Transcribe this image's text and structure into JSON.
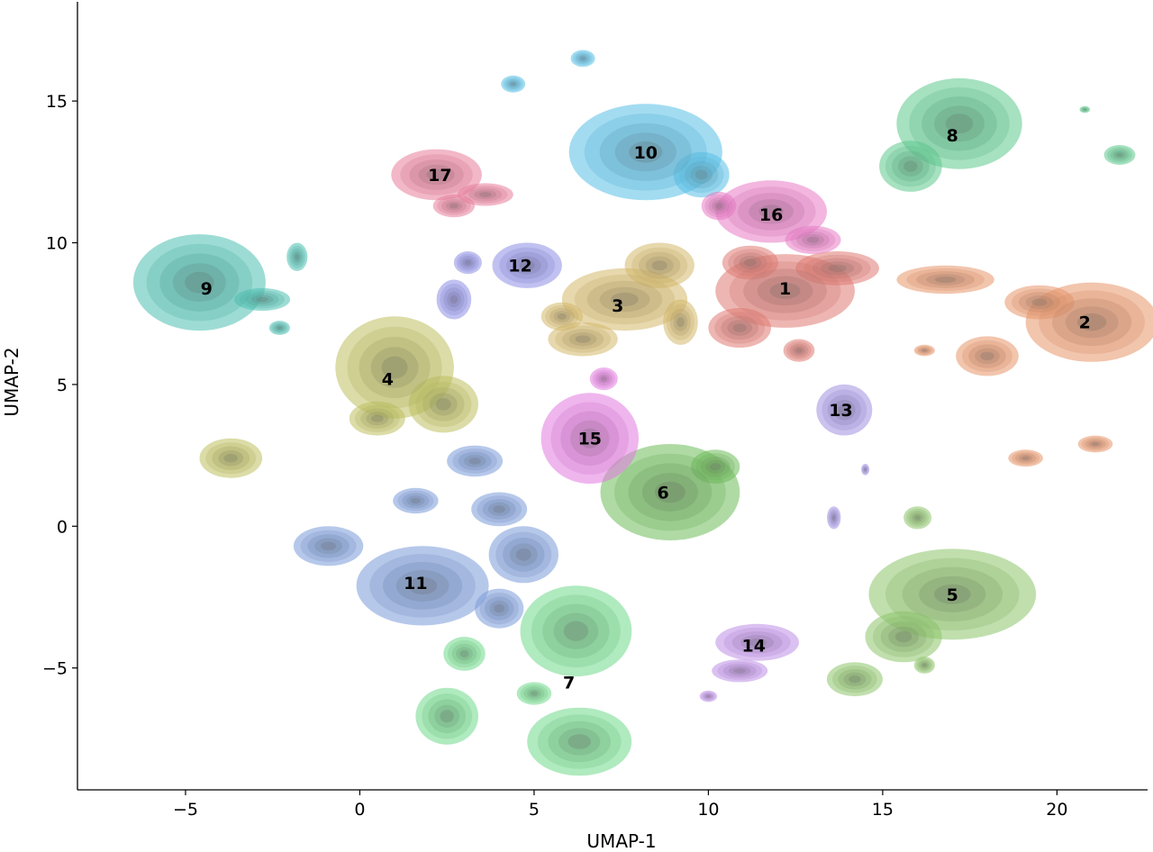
{
  "chart_data": {
    "type": "density-contour",
    "title": "",
    "xlabel": "UMAP-1",
    "ylabel": "UMAP-2",
    "xlim": [
      -8.1,
      22.6
    ],
    "ylim": [
      -9.3,
      18.5
    ],
    "x_ticks": [
      -5,
      0,
      5,
      10,
      15,
      20
    ],
    "y_ticks": [
      -5,
      0,
      5,
      10,
      15
    ],
    "x_tick_labels": [
      "−5",
      "0",
      "5",
      "10",
      "15",
      "20"
    ],
    "y_tick_labels": [
      "−5",
      "0",
      "5",
      "10",
      "15"
    ],
    "grid": false,
    "legend": "none",
    "clusters": [
      {
        "label": "1",
        "color": "#e07a72",
        "center": [
          12.2,
          8.4
        ],
        "blobs": [
          [
            12.2,
            8.3,
            2.0,
            1.3
          ],
          [
            10.9,
            7.0,
            0.9,
            0.7
          ],
          [
            13.7,
            9.1,
            1.2,
            0.6
          ],
          [
            12.6,
            6.2,
            0.45,
            0.4
          ],
          [
            11.2,
            9.3,
            0.8,
            0.6
          ]
        ]
      },
      {
        "label": "2",
        "color": "#e8956a",
        "center": [
          20.8,
          7.2
        ],
        "blobs": [
          [
            21.0,
            7.2,
            1.9,
            1.4
          ],
          [
            18.0,
            6.0,
            0.9,
            0.7
          ],
          [
            16.8,
            8.7,
            1.4,
            0.5
          ],
          [
            19.5,
            7.9,
            1.0,
            0.6
          ],
          [
            16.2,
            6.2,
            0.3,
            0.2
          ],
          [
            19.1,
            2.4,
            0.5,
            0.3
          ],
          [
            21.1,
            2.9,
            0.5,
            0.3
          ]
        ]
      },
      {
        "label": "3",
        "color": "#d4b86a",
        "center": [
          7.4,
          7.8
        ],
        "blobs": [
          [
            7.6,
            8.0,
            1.8,
            1.1
          ],
          [
            8.6,
            9.2,
            1.0,
            0.8
          ],
          [
            6.4,
            6.6,
            1.0,
            0.6
          ],
          [
            5.8,
            7.4,
            0.6,
            0.5
          ],
          [
            9.2,
            7.2,
            0.5,
            0.8
          ]
        ]
      },
      {
        "label": "4",
        "color": "#bdc05e",
        "center": [
          0.8,
          5.2
        ],
        "blobs": [
          [
            1.0,
            5.6,
            1.7,
            1.8
          ],
          [
            2.4,
            4.3,
            1.0,
            1.0
          ],
          [
            0.5,
            3.8,
            0.8,
            0.6
          ],
          [
            -3.7,
            2.4,
            0.9,
            0.7
          ]
        ]
      },
      {
        "label": "5",
        "color": "#8cc46a",
        "center": [
          17.0,
          -2.4
        ],
        "blobs": [
          [
            17.0,
            -2.4,
            2.4,
            1.6
          ],
          [
            15.6,
            -3.9,
            1.1,
            0.9
          ],
          [
            14.2,
            -5.4,
            0.8,
            0.6
          ],
          [
            16.2,
            -4.9,
            0.3,
            0.3
          ],
          [
            16.0,
            0.3,
            0.4,
            0.4
          ]
        ]
      },
      {
        "label": "6",
        "color": "#6ebb5a",
        "center": [
          8.7,
          1.2
        ],
        "blobs": [
          [
            8.9,
            1.2,
            2.0,
            1.7
          ],
          [
            10.2,
            2.1,
            0.7,
            0.6
          ]
        ]
      },
      {
        "label": "7",
        "color": "#6fd88a",
        "center": [
          6.0,
          -5.5
        ],
        "blobs": [
          [
            6.2,
            -3.7,
            1.6,
            1.6
          ],
          [
            6.3,
            -7.6,
            1.5,
            1.2
          ],
          [
            2.5,
            -6.7,
            0.9,
            1.0
          ],
          [
            3.0,
            -4.5,
            0.6,
            0.6
          ],
          [
            5.0,
            -5.9,
            0.5,
            0.4
          ]
        ]
      },
      {
        "label": "8",
        "color": "#5cc98c",
        "center": [
          17.0,
          13.8
        ],
        "blobs": [
          [
            17.2,
            14.2,
            1.8,
            1.6
          ],
          [
            15.8,
            12.7,
            0.9,
            0.9
          ],
          [
            21.8,
            13.1,
            0.45,
            0.35
          ],
          [
            20.8,
            14.7,
            0.15,
            0.12
          ]
        ]
      },
      {
        "label": "9",
        "color": "#4cc0b0",
        "center": [
          -4.4,
          8.4
        ],
        "blobs": [
          [
            -4.6,
            8.6,
            1.9,
            1.7
          ],
          [
            -2.8,
            8.0,
            0.8,
            0.4
          ],
          [
            -1.8,
            9.5,
            0.3,
            0.5
          ],
          [
            -2.3,
            7.0,
            0.3,
            0.25
          ]
        ]
      },
      {
        "label": "10",
        "color": "#58c0e6",
        "center": [
          8.2,
          13.2
        ],
        "blobs": [
          [
            8.2,
            13.2,
            2.2,
            1.7
          ],
          [
            9.8,
            12.4,
            0.8,
            0.8
          ],
          [
            4.4,
            15.6,
            0.35,
            0.3
          ],
          [
            6.4,
            16.5,
            0.35,
            0.3
          ]
        ]
      },
      {
        "label": "11",
        "color": "#7a9ad8",
        "center": [
          1.6,
          -2.0
        ],
        "blobs": [
          [
            1.8,
            -2.1,
            1.9,
            1.4
          ],
          [
            -0.9,
            -0.7,
            1.0,
            0.7
          ],
          [
            4.7,
            -1.0,
            1.0,
            1.0
          ],
          [
            4.0,
            0.6,
            0.8,
            0.6
          ],
          [
            3.3,
            2.3,
            0.8,
            0.55
          ],
          [
            1.6,
            0.9,
            0.65,
            0.45
          ],
          [
            4.0,
            -2.9,
            0.7,
            0.7
          ]
        ]
      },
      {
        "label": "12",
        "color": "#8e8ee6",
        "center": [
          4.6,
          9.2
        ],
        "blobs": [
          [
            4.8,
            9.2,
            1.0,
            0.8
          ],
          [
            2.7,
            8.0,
            0.5,
            0.7
          ],
          [
            3.1,
            9.3,
            0.4,
            0.4
          ]
        ]
      },
      {
        "label": "13",
        "color": "#a090e0",
        "center": [
          13.8,
          4.1
        ],
        "blobs": [
          [
            13.9,
            4.1,
            0.8,
            0.9
          ],
          [
            13.6,
            0.3,
            0.2,
            0.4
          ],
          [
            14.5,
            2.0,
            0.12,
            0.2
          ]
        ]
      },
      {
        "label": "14",
        "color": "#bd8ee6",
        "center": [
          11.3,
          -4.2
        ],
        "blobs": [
          [
            11.4,
            -4.1,
            1.2,
            0.65
          ],
          [
            10.9,
            -5.1,
            0.8,
            0.4
          ],
          [
            10.0,
            -6.0,
            0.25,
            0.2
          ]
        ]
      },
      {
        "label": "15",
        "color": "#e27ae0",
        "center": [
          6.6,
          3.1
        ],
        "blobs": [
          [
            6.6,
            3.1,
            1.4,
            1.6
          ],
          [
            7.0,
            5.2,
            0.4,
            0.4
          ]
        ]
      },
      {
        "label": "16",
        "color": "#e77ac4",
        "center": [
          11.8,
          11.0
        ],
        "blobs": [
          [
            11.8,
            11.1,
            1.6,
            1.1
          ],
          [
            13.0,
            10.1,
            0.8,
            0.5
          ],
          [
            10.3,
            11.3,
            0.5,
            0.5
          ]
        ]
      },
      {
        "label": "17",
        "color": "#e87e9a",
        "center": [
          2.3,
          12.4
        ],
        "blobs": [
          [
            2.2,
            12.4,
            1.3,
            0.9
          ],
          [
            3.6,
            11.7,
            0.8,
            0.4
          ],
          [
            2.7,
            11.3,
            0.6,
            0.4
          ]
        ]
      }
    ]
  }
}
